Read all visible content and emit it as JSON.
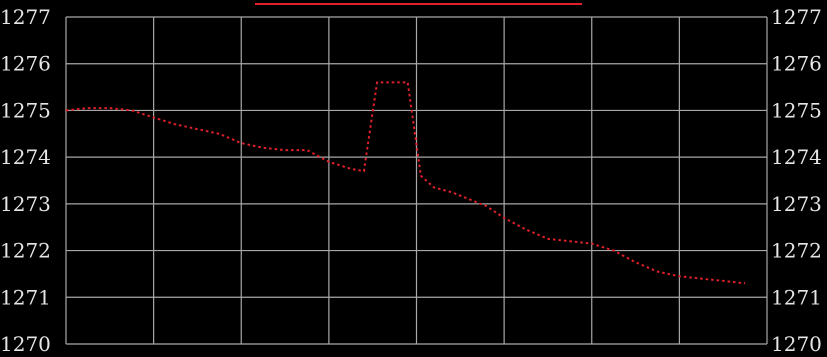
{
  "chart_data": {
    "type": "line",
    "title": "",
    "xlabel": "",
    "ylabel": "",
    "ylim": [
      1270,
      1277
    ],
    "y_ticks": [
      "1277",
      "1276",
      "1275",
      "1274",
      "1273",
      "1272",
      "1271",
      "1270"
    ],
    "y_ticks_right": [
      "1277",
      "1276",
      "1275",
      "1274",
      "1273",
      "1272",
      "1271",
      "1270"
    ],
    "x_gridlines": 8,
    "grid": true,
    "legend": "top-center",
    "series": [
      {
        "color": "#e0202a",
        "line_style": "dotted",
        "x": [
          0,
          0.25,
          0.5,
          0.75,
          1.0,
          1.25,
          1.5,
          1.75,
          2.0,
          2.25,
          2.5,
          2.75,
          3.0,
          3.25,
          3.4,
          3.55,
          3.65,
          3.75,
          3.9,
          4.05,
          4.2,
          4.4,
          4.6,
          4.8,
          5.0,
          5.25,
          5.5,
          5.75,
          6.0,
          6.25,
          6.5,
          6.75,
          7.0,
          7.25,
          7.5,
          7.75
        ],
        "values": [
          1275.0,
          1275.05,
          1275.05,
          1275.0,
          1274.85,
          1274.7,
          1274.6,
          1274.5,
          1274.3,
          1274.2,
          1274.15,
          1274.15,
          1273.9,
          1273.75,
          1273.7,
          1275.6,
          1275.6,
          1275.6,
          1275.6,
          1273.6,
          1273.35,
          1273.25,
          1273.1,
          1272.95,
          1272.7,
          1272.45,
          1272.25,
          1272.2,
          1272.15,
          1272.0,
          1271.75,
          1271.55,
          1271.45,
          1271.4,
          1271.35,
          1271.3
        ]
      }
    ]
  },
  "colors": {
    "background": "#000000",
    "grid": "#a8a8a8",
    "text": "#e6e6e6",
    "legend_swatch": "#e0202a"
  }
}
